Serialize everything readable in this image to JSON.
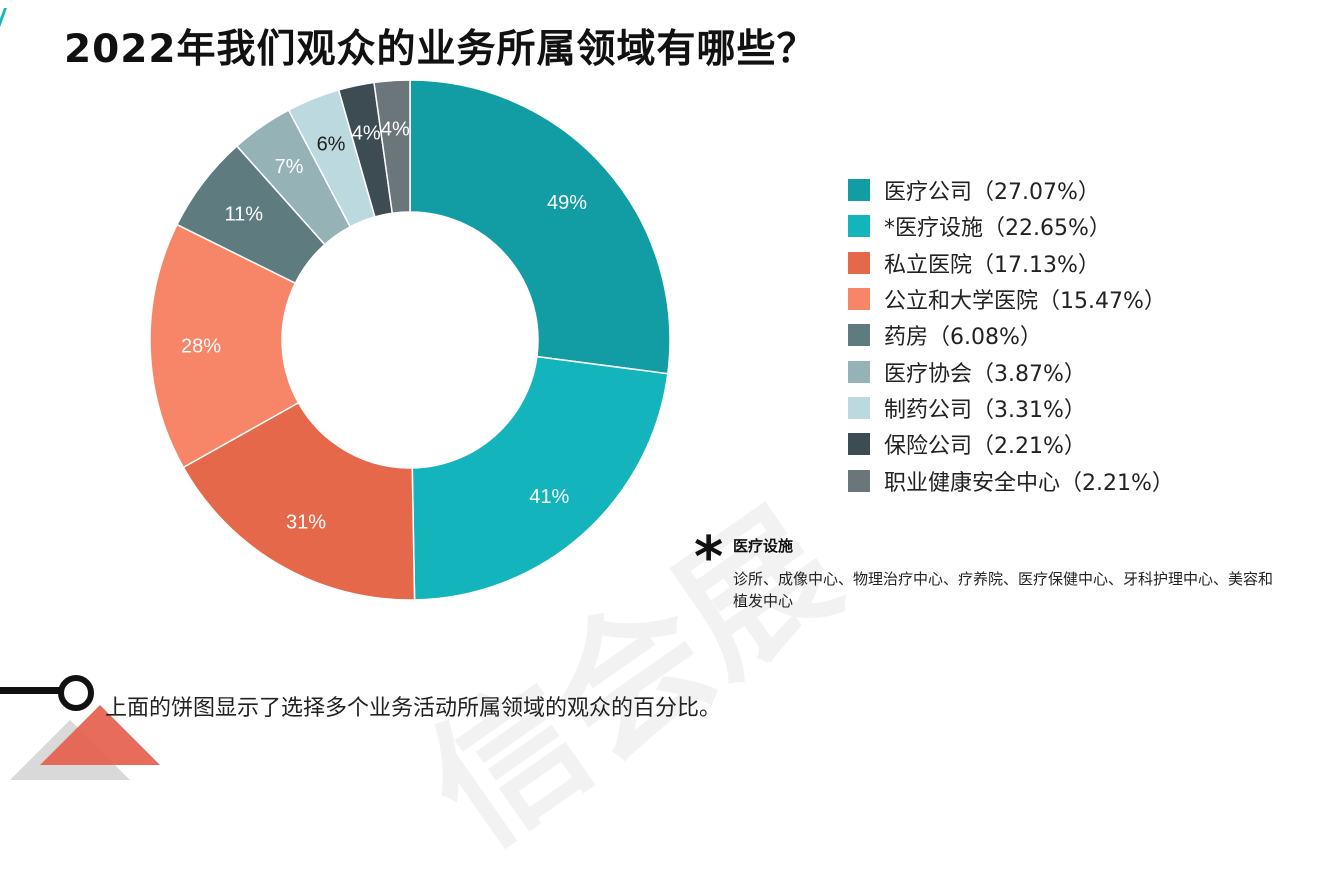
{
  "title": "2022年我们观众的业务所属领域有哪些？",
  "colors": {
    "accent": "#1ab5b5"
  },
  "chart_data": {
    "type": "pie",
    "subtype": "donut",
    "slice_labels": [
      "49%",
      "41%",
      "31%",
      "28%",
      "11%",
      "7%",
      "6%",
      "4%",
      "4%"
    ],
    "series": [
      {
        "label": "医疗公司（27.07%）",
        "value": 27.07,
        "color": "#129ca4"
      },
      {
        "label": "*医疗设施（22.65%）",
        "value": 22.65,
        "color": "#14b4bc"
      },
      {
        "label": "私立医院（17.13%）",
        "value": 17.13,
        "color": "#e5684b"
      },
      {
        "label": "公立和大学医院（15.47%）",
        "value": 15.47,
        "color": "#f78567"
      },
      {
        "label": "药房（6.08%）",
        "value": 6.08,
        "color": "#5e7c80"
      },
      {
        "label": "医疗协会（3.87%）",
        "value": 3.87,
        "color": "#95b3b7"
      },
      {
        "label": "制药公司（3.31%）",
        "value": 3.31,
        "color": "#bcd9df"
      },
      {
        "label": "保险公司（2.21%）",
        "value": 2.21,
        "color": "#3d4b52"
      },
      {
        "label": "职业健康安全中心（2.21%）",
        "value": 2.21,
        "color": "#6b767b"
      }
    ],
    "legend_position": "right"
  },
  "footnote": {
    "asterisk": "*",
    "title": "医疗设施",
    "text": "诊所、成像中心、物理治疗中心、疗养院、医疗保健中心、牙科护理中心、美容和植发中心"
  },
  "bottom_note": "上面的饼图显示了选择多个业务活动所属领域的观众的百分比。",
  "watermark": "信会展"
}
